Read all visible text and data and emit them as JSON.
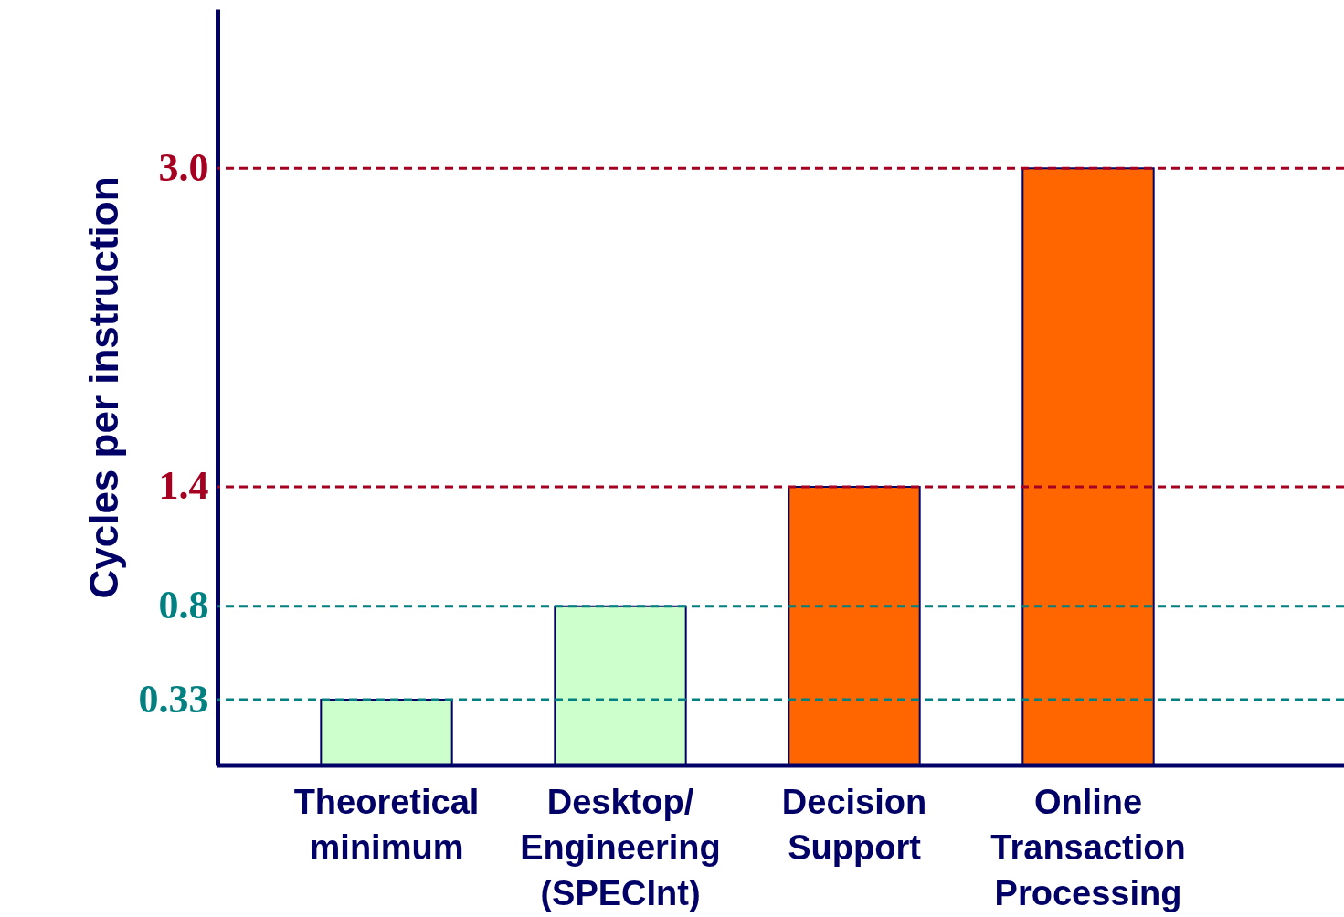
{
  "chart_data": {
    "type": "bar",
    "ylabel": "Cycles per instruction",
    "categories": [
      "Theoretical minimum",
      "Desktop/ Engineering (SPECInt)",
      "Decision Support",
      "Online Transaction Processing"
    ],
    "values": [
      0.33,
      0.8,
      1.4,
      3.0
    ],
    "colors": [
      "#ccffcc",
      "#ccffcc",
      "#ff6600",
      "#ff6600"
    ],
    "ylim": [
      0,
      3.8
    ],
    "yticks": [
      0.33,
      0.8,
      1.4,
      {
        "value": 3.0,
        "label": "3.0"
      }
    ],
    "ref_lines": [
      {
        "axis": "y",
        "value": 0.33,
        "color": "#008080",
        "line_style": "dashed"
      },
      {
        "axis": "y",
        "value": 0.8,
        "color": "#008080",
        "line_style": "dashed"
      },
      {
        "axis": "y",
        "value": 1.4,
        "color": "#a50021",
        "line_style": "dashed"
      },
      {
        "axis": "y",
        "value": 3.0,
        "color": "#a50021",
        "line_style": "dashed"
      }
    ],
    "grid": false
  }
}
